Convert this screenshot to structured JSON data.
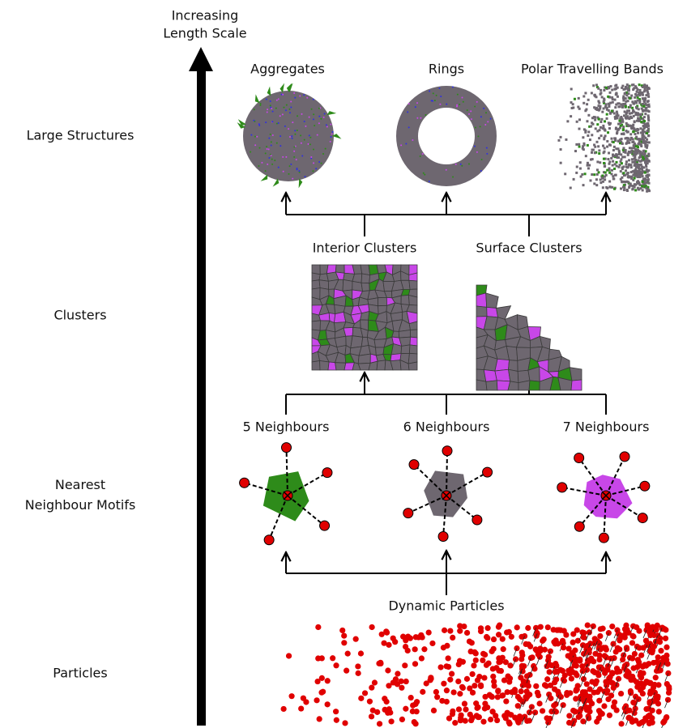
{
  "axis_label": {
    "lines": [
      "Increasing",
      "Length Scale"
    ]
  },
  "levels": [
    {
      "lines": [
        "Large Structures"
      ]
    },
    {
      "lines": [
        "Clusters"
      ]
    },
    {
      "lines": [
        "Nearest",
        "Neighbour Motifs"
      ]
    },
    {
      "lines": [
        "Particles"
      ]
    }
  ],
  "structures": [
    "Aggregates",
    "Rings",
    "Polar Travelling Bands"
  ],
  "clusters": [
    "Interior Clusters",
    "Surface Clusters"
  ],
  "motifs": [
    "5 Neighbours",
    "6 Neighbours",
    "7 Neighbours"
  ],
  "particles_label": "Dynamic Particles"
}
